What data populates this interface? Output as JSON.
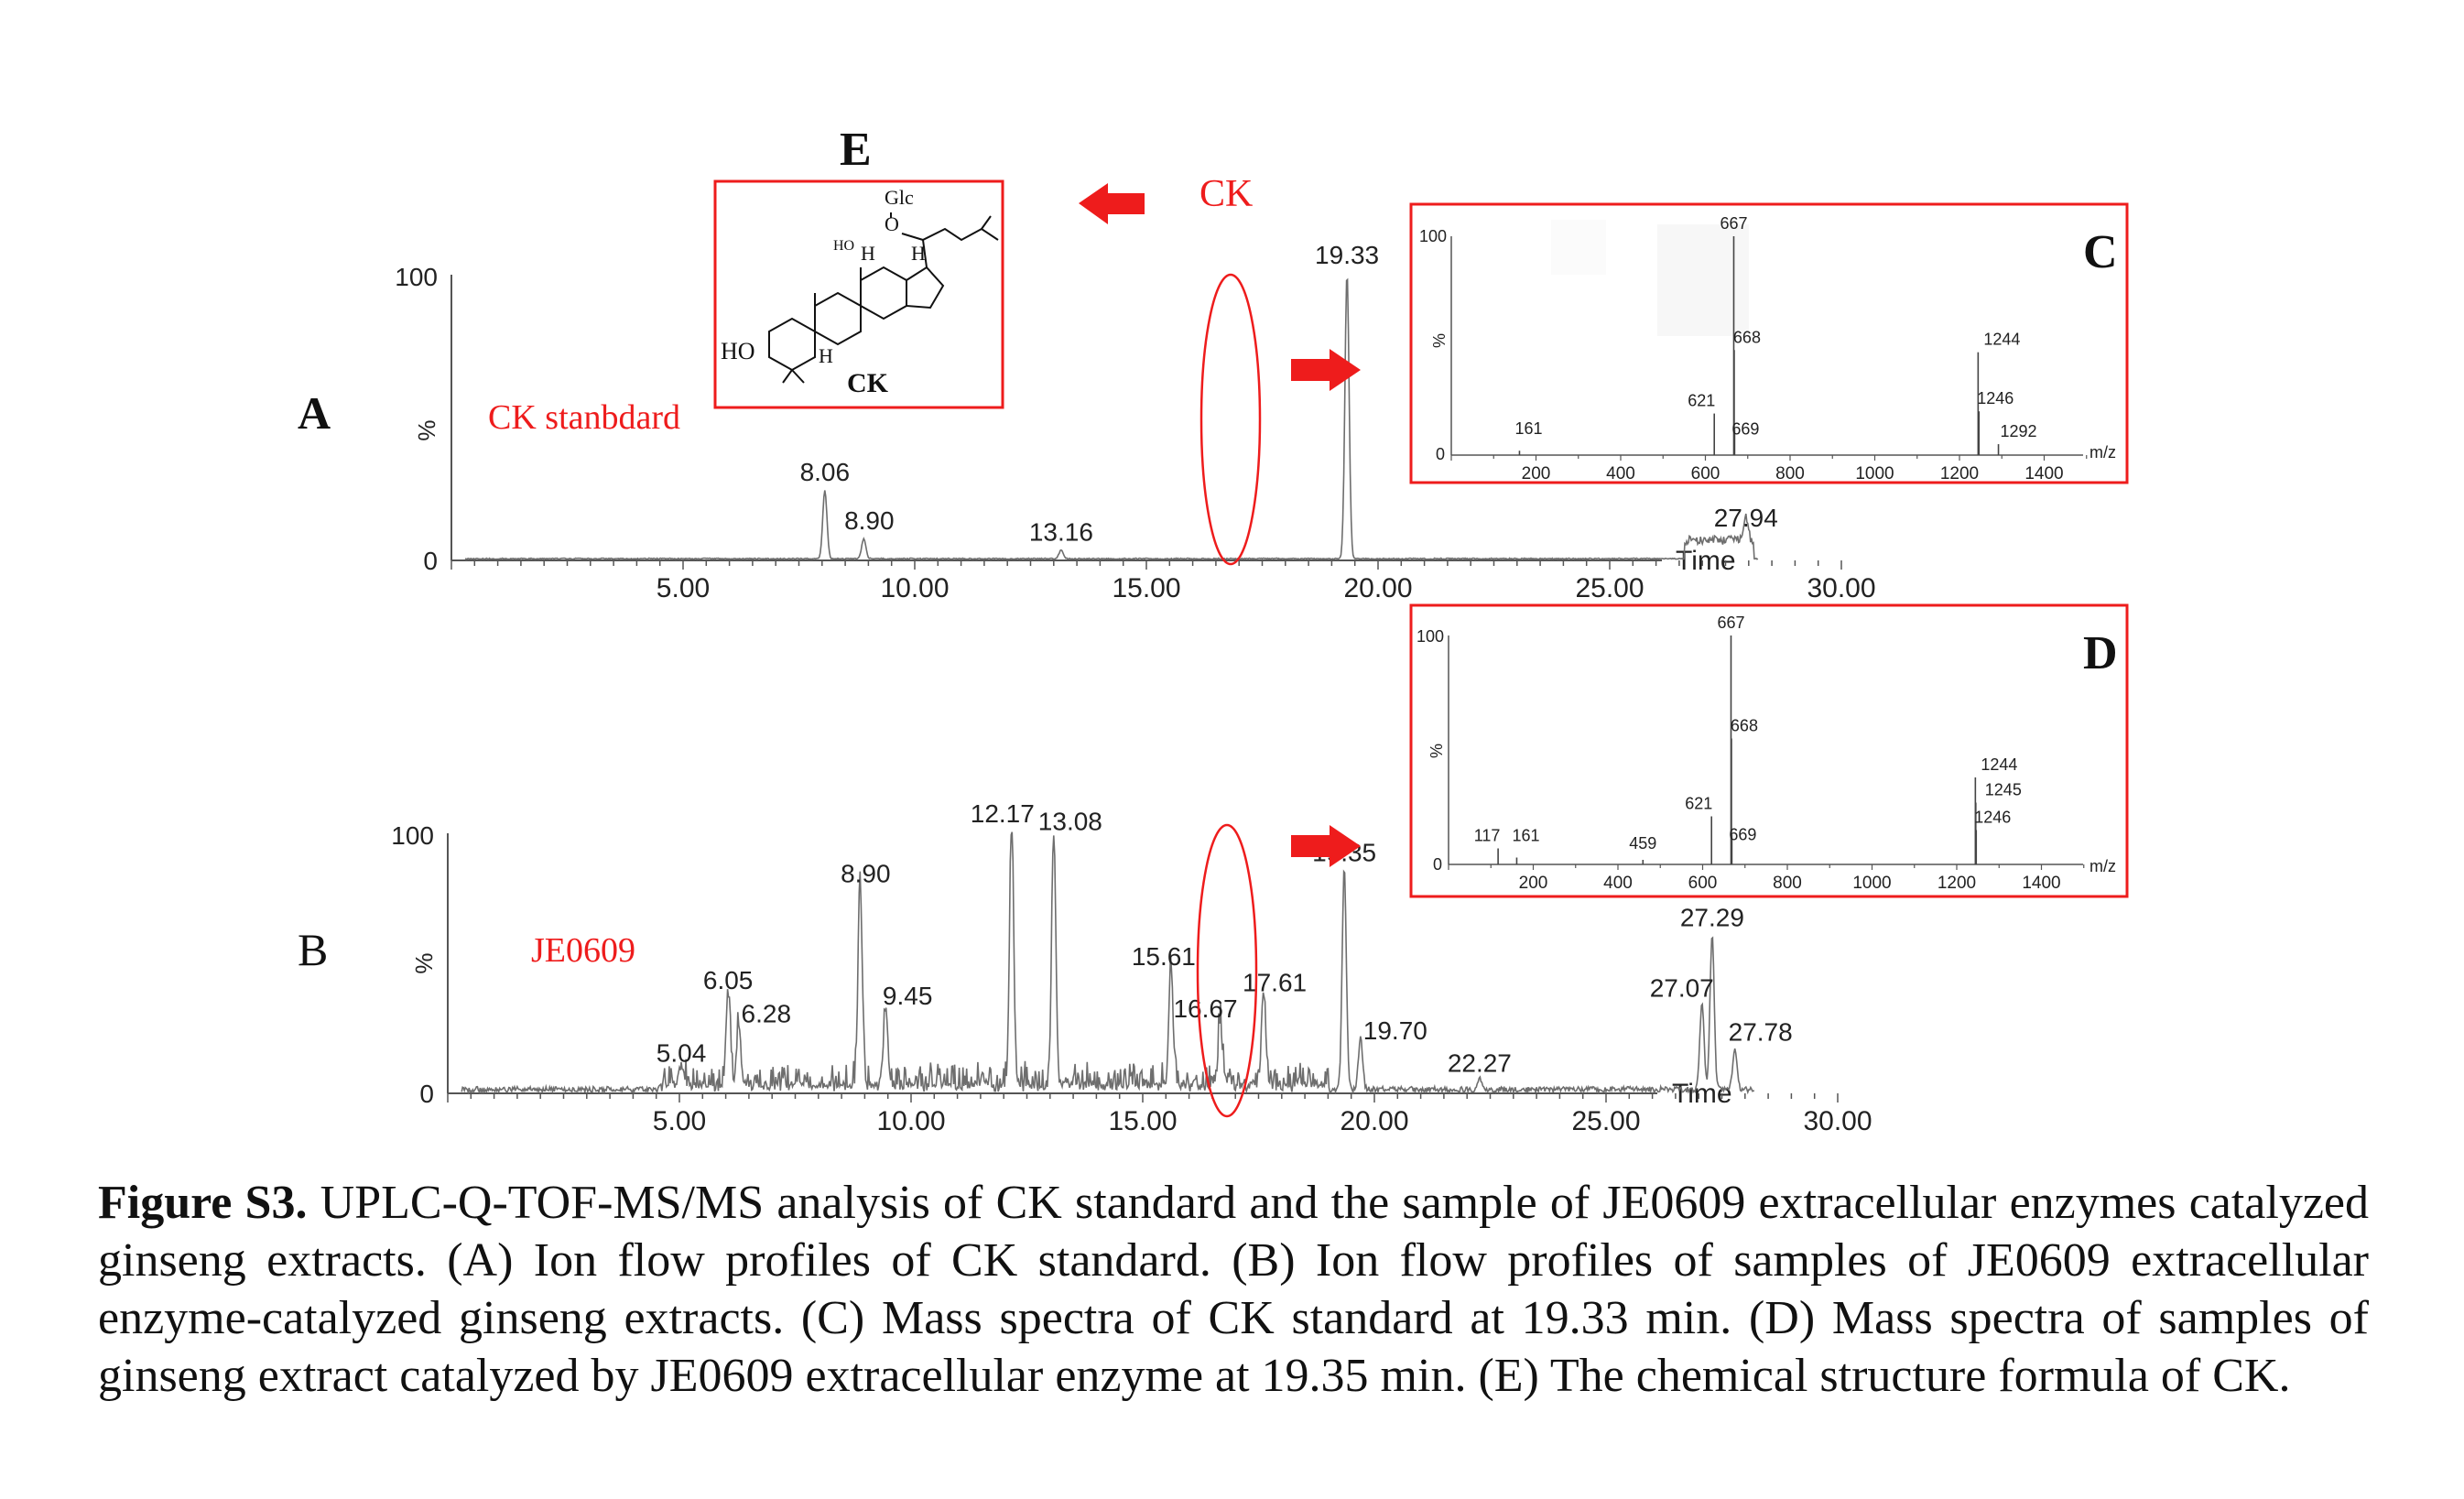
{
  "chart_data": [
    {
      "panel": "A",
      "type": "line",
      "sample_label": "CK stanbdard",
      "y_ticks": [
        "100",
        "0"
      ],
      "y_label": "%",
      "x_label": "Time",
      "x_ticks": [
        "5.00",
        "10.00",
        "15.00",
        "20.00",
        "25.00",
        "30.00"
      ],
      "xlim": [
        0,
        30
      ],
      "ylim": [
        0,
        100
      ],
      "peak_label": "CK",
      "peaks": [
        {
          "rt": 8.06,
          "label": "8.06",
          "intensity": 24
        },
        {
          "rt": 8.9,
          "label": "8.90",
          "intensity": 7
        },
        {
          "rt": 13.16,
          "label": "13.16",
          "intensity": 3
        },
        {
          "rt": 19.33,
          "label": "19.33",
          "intensity": 100
        },
        {
          "rt": 27.94,
          "label": "27.94",
          "intensity": 8
        }
      ]
    },
    {
      "panel": "B",
      "type": "line",
      "sample_label": "JE0609",
      "y_ticks": [
        "100",
        "0"
      ],
      "y_label": "%",
      "x_label": "Time",
      "x_ticks": [
        "5.00",
        "10.00",
        "15.00",
        "20.00",
        "25.00",
        "30.00"
      ],
      "xlim": [
        0,
        30
      ],
      "ylim": [
        0,
        100
      ],
      "peaks": [
        {
          "rt": 5.04,
          "label": "5.04",
          "intensity": 8
        },
        {
          "rt": 6.05,
          "label": "6.05",
          "intensity": 36
        },
        {
          "rt": 6.28,
          "label": "6.28",
          "intensity": 23
        },
        {
          "rt": 8.9,
          "label": "8.90",
          "intensity": 77
        },
        {
          "rt": 9.45,
          "label": "9.45",
          "intensity": 30
        },
        {
          "rt": 12.17,
          "label": "12.17",
          "intensity": 100
        },
        {
          "rt": 13.08,
          "label": "13.08",
          "intensity": 97
        },
        {
          "rt": 15.61,
          "label": "15.61",
          "intensity": 45
        },
        {
          "rt": 16.67,
          "label": "16.67",
          "intensity": 25
        },
        {
          "rt": 17.61,
          "label": "17.61",
          "intensity": 35
        },
        {
          "rt": 19.35,
          "label": "19.35",
          "intensity": 85
        },
        {
          "rt": 19.7,
          "label": "19.70",
          "intensity": 20
        },
        {
          "rt": 22.27,
          "label": "22.27",
          "intensity": 4
        },
        {
          "rt": 27.07,
          "label": "27.07",
          "intensity": 33
        },
        {
          "rt": 27.29,
          "label": "27.29",
          "intensity": 60
        },
        {
          "rt": 27.78,
          "label": "27.78",
          "intensity": 16
        }
      ]
    },
    {
      "panel": "C",
      "type": "bar",
      "y_ticks": [
        "100",
        "0"
      ],
      "y_label": "%",
      "x_label": "m/z",
      "x_ticks": [
        "200",
        "400",
        "600",
        "800",
        "1000",
        "1200",
        "1400"
      ],
      "xlim": [
        0,
        1500
      ],
      "ylim": [
        0,
        100
      ],
      "peaks": [
        {
          "mz": 161,
          "label": "161",
          "intensity": 2
        },
        {
          "mz": 621,
          "label": "621",
          "intensity": 19
        },
        {
          "mz": 667,
          "label": "667",
          "intensity": 100
        },
        {
          "mz": 668,
          "label": "668",
          "intensity": 48
        },
        {
          "mz": 669,
          "label": "669",
          "intensity": 12
        },
        {
          "mz": 1244,
          "label": "1244",
          "intensity": 47
        },
        {
          "mz": 1246,
          "label": "1246",
          "intensity": 20
        },
        {
          "mz": 1292,
          "label": "1292",
          "intensity": 5
        }
      ]
    },
    {
      "panel": "D",
      "type": "bar",
      "y_ticks": [
        "100",
        "0"
      ],
      "y_label": "%",
      "x_label": "m/z",
      "x_ticks": [
        "200",
        "400",
        "600",
        "800",
        "1000",
        "1200",
        "1400"
      ],
      "xlim": [
        0,
        1500
      ],
      "ylim": [
        0,
        100
      ],
      "peaks": [
        {
          "mz": 117,
          "label": "117",
          "intensity": 7
        },
        {
          "mz": 161,
          "label": "161",
          "intensity": 3
        },
        {
          "mz": 459,
          "label": "459",
          "intensity": 2
        },
        {
          "mz": 621,
          "label": "621",
          "intensity": 21
        },
        {
          "mz": 667,
          "label": "667",
          "intensity": 100
        },
        {
          "mz": 668,
          "label": "668",
          "intensity": 55
        },
        {
          "mz": 669,
          "label": "669",
          "intensity": 13
        },
        {
          "mz": 1244,
          "label": "1244",
          "intensity": 38
        },
        {
          "mz": 1245,
          "label": "1245",
          "intensity": 27
        },
        {
          "mz": 1246,
          "label": "1246",
          "intensity": 15
        }
      ]
    }
  ],
  "panel_labels": {
    "a": "A",
    "b": "B",
    "c": "C",
    "d": "D",
    "e": "E"
  },
  "structure": {
    "name": "CK",
    "labels": [
      "Glc",
      "O",
      "HO",
      "H",
      "H",
      "HO",
      "H"
    ]
  },
  "colors": {
    "accent": "#ee1c1c",
    "trace": "#6e6e6e",
    "axis": "#555555"
  },
  "caption": {
    "bold": "Figure S3.",
    "text": " UPLC-Q-TOF-MS/MS analysis of CK standard and the sample of JE0609 extracellular enzymes catalyzed ginseng extracts. (A) Ion flow profiles of CK standard. (B) Ion flow profiles of samples of JE0609 extracellular enzyme-catalyzed ginseng extracts. (C) Mass spectra of CK standard at 19.33 min. (D) Mass spectra of samples of ginseng extract catalyzed by JE0609 extracellular enzyme at 19.35 min. (E) The chemical structure formula of CK."
  }
}
